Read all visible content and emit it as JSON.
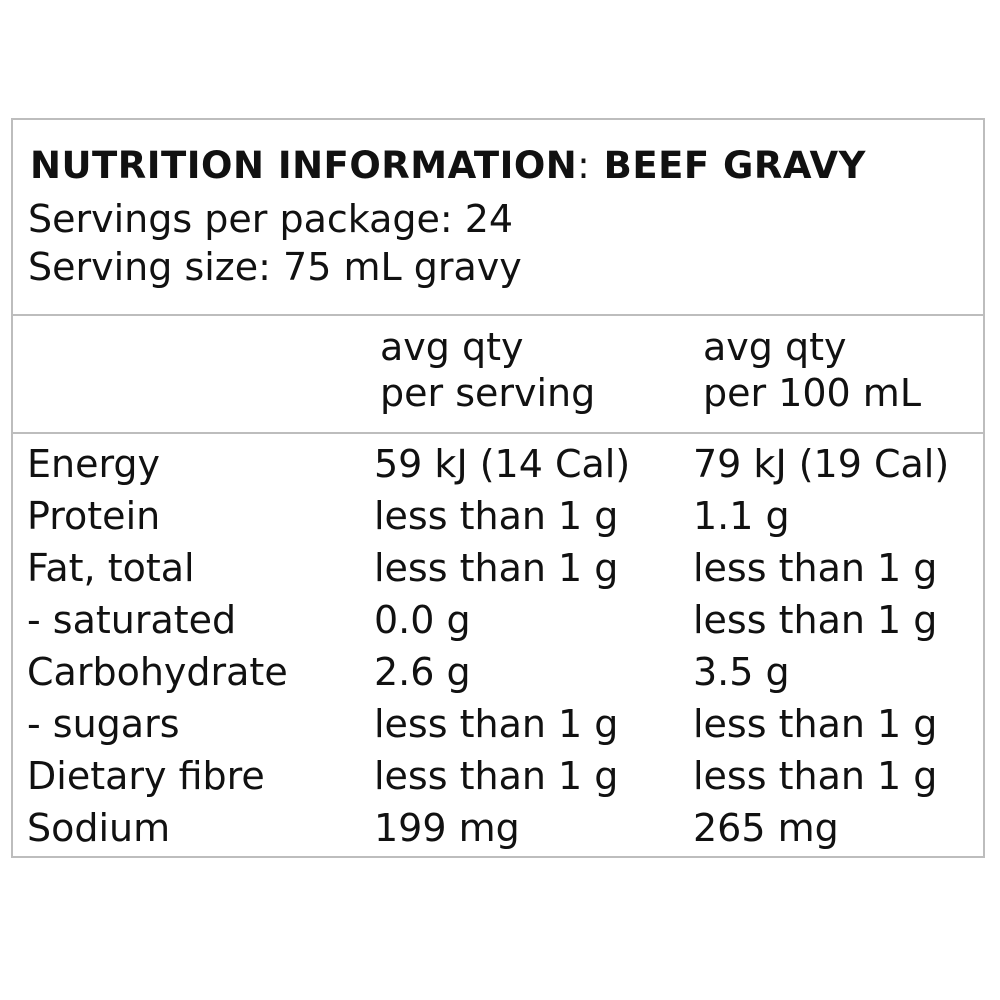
{
  "panel": {
    "title_main": "NUTRITION INFORMATION",
    "title_sep": ":",
    "title_product": "BEEF GRAVY",
    "servings_per_package": "Servings per package: 24",
    "serving_size": "Serving size: 75 mL gravy"
  },
  "columns": {
    "per_serving_line1": "avg qty",
    "per_serving_line2": "per serving",
    "per_100_line1": "avg qty",
    "per_100_line2": "per 100 mL"
  },
  "rows": [
    {
      "name": "Energy",
      "per_serving": "59 kJ (14 Cal)",
      "per_100": "79 kJ (19 Cal)"
    },
    {
      "name": "Protein",
      "per_serving": "less than 1 g",
      "per_100": "1.1 g"
    },
    {
      "name": "Fat, total",
      "per_serving": "less than 1 g",
      "per_100": "less than 1 g"
    },
    {
      "name": "- saturated",
      "per_serving": "0.0 g",
      "per_100": "less than 1 g"
    },
    {
      "name": "Carbohydrate",
      "per_serving": "2.6 g",
      "per_100": "3.5 g"
    },
    {
      "name": "- sugars",
      "per_serving": "less than 1 g",
      "per_100": "less than 1 g"
    },
    {
      "name": "Dietary fibre",
      "per_serving": "less than 1 g",
      "per_100": "less than 1 g"
    },
    {
      "name": "Sodium",
      "per_serving": "199 mg",
      "per_100": "265 mg"
    }
  ]
}
